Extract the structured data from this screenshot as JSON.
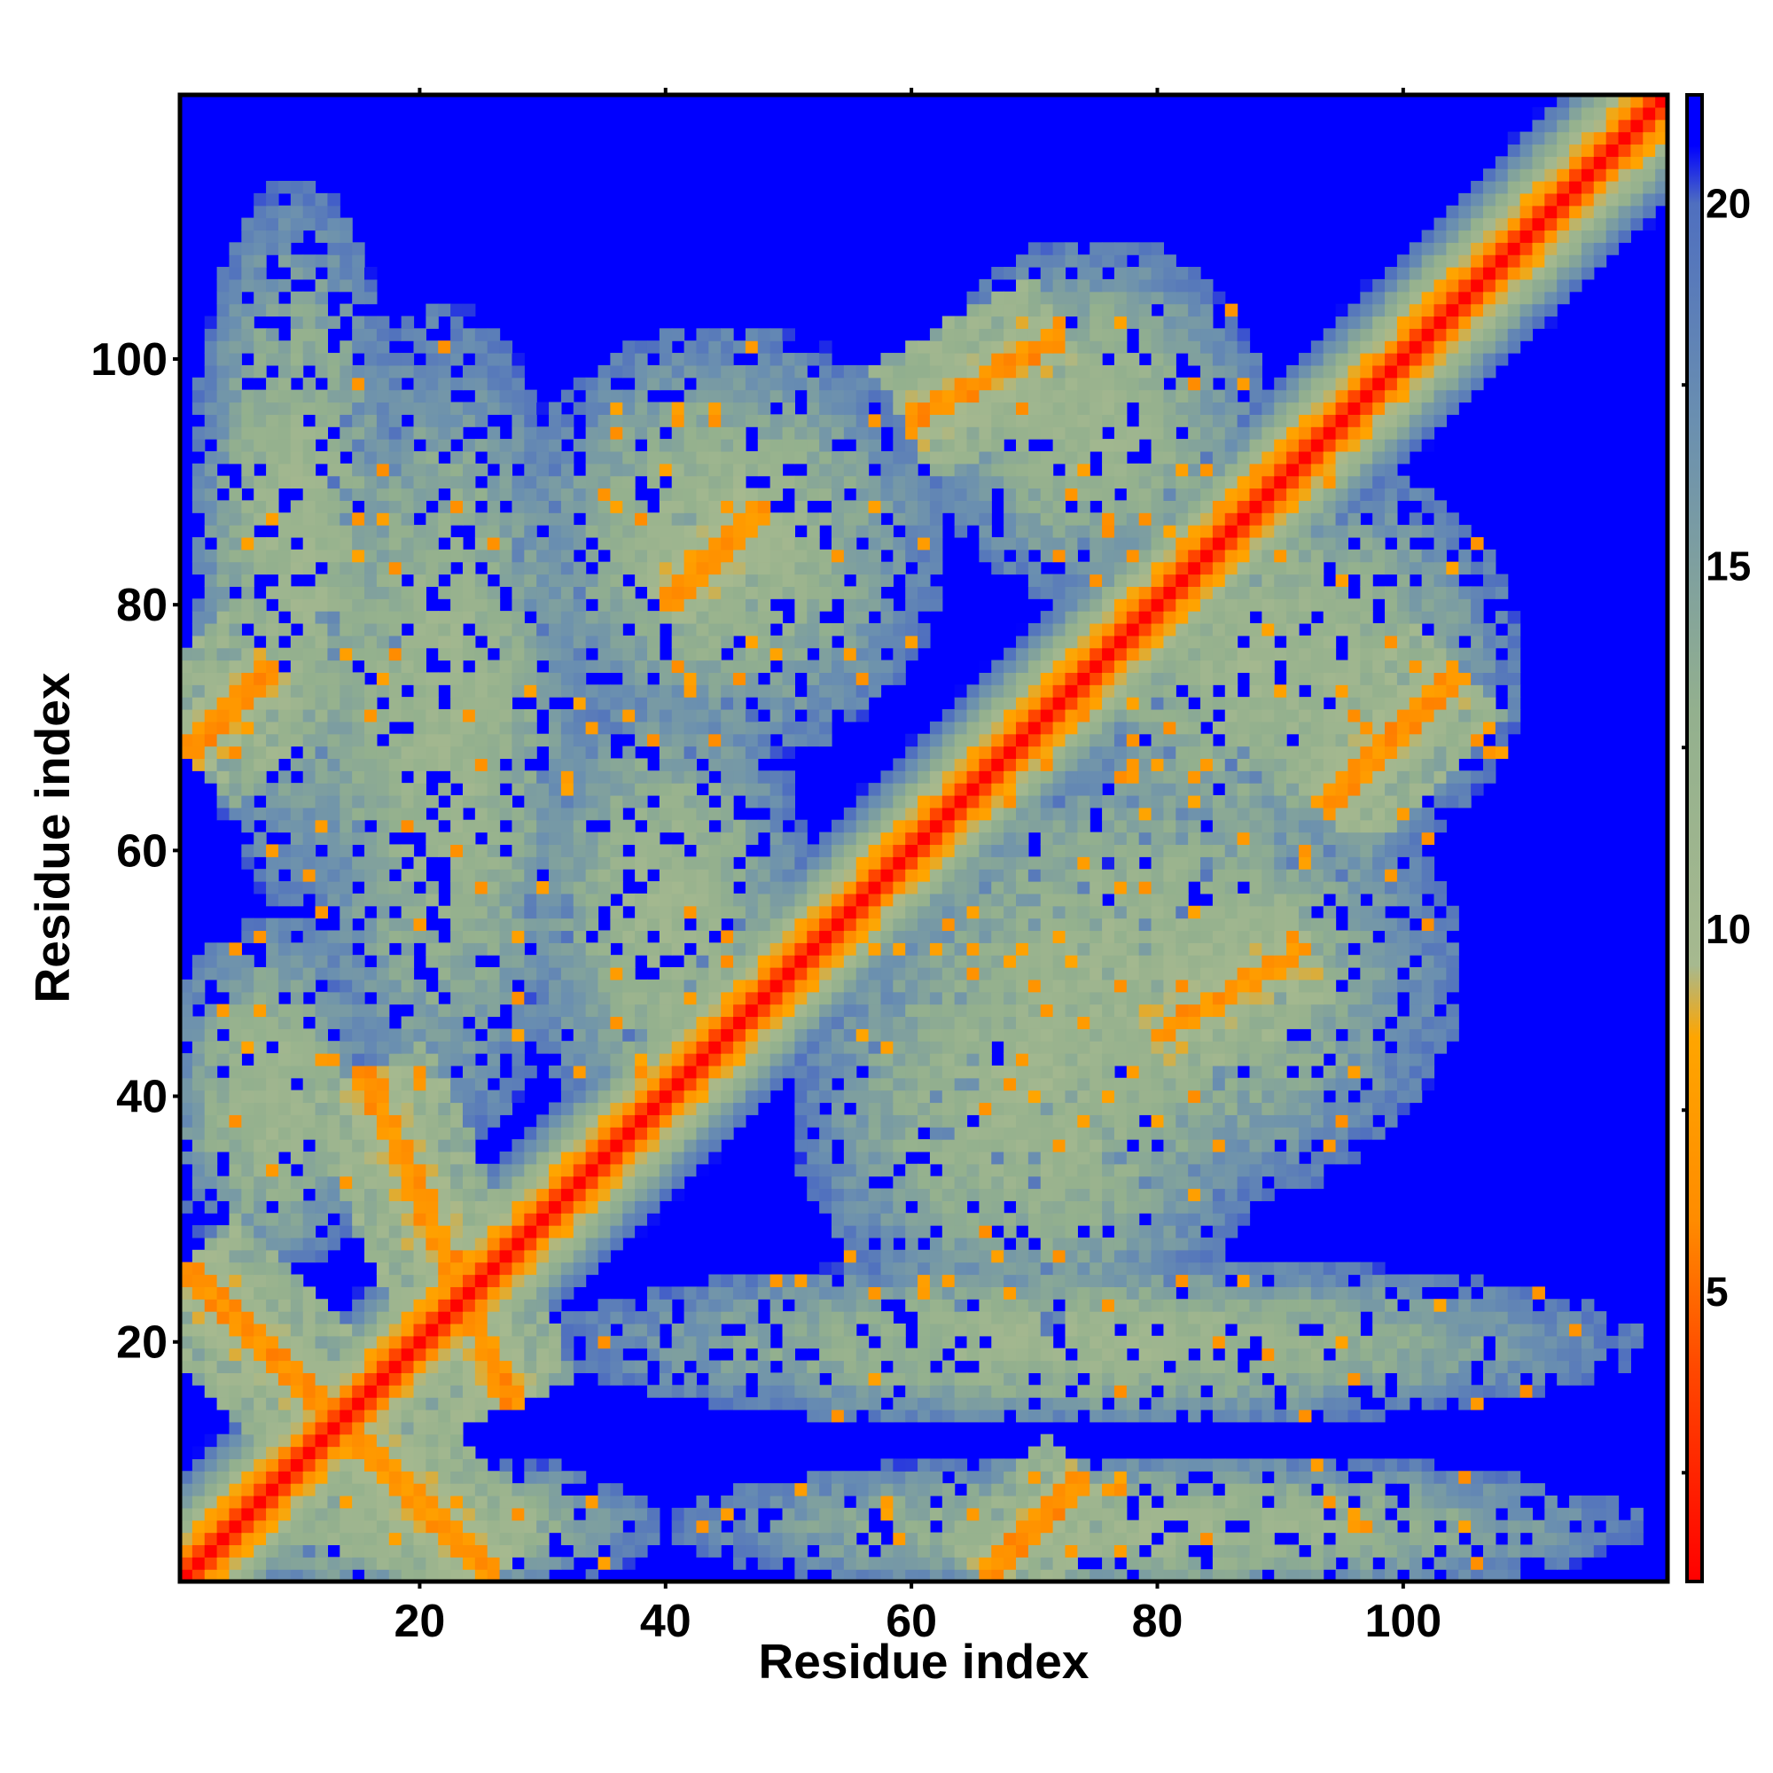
{
  "chart_data": {
    "type": "heatmap",
    "title": "",
    "xlabel": "Residue index",
    "ylabel": "Residue index",
    "xlim": [
      1,
      121
    ],
    "ylim": [
      1,
      121
    ],
    "x_ticks": [
      20,
      40,
      60,
      80,
      100
    ],
    "y_ticks": [
      20,
      40,
      60,
      80,
      100
    ],
    "colorbar": {
      "ticks": [
        5,
        10,
        15,
        20
      ],
      "range": [
        1,
        21.5
      ],
      "low_color": "#ff0000",
      "mid_color": "#ff9900",
      "high_color": "#0000ff",
      "stops": [
        {
          "value": 1.0,
          "color": "#ff0000"
        },
        {
          "value": 4.0,
          "color": "#ff4a00"
        },
        {
          "value": 6.0,
          "color": "#ff8c00"
        },
        {
          "value": 8.5,
          "color": "#ffa500"
        },
        {
          "value": 9.5,
          "color": "#a6b98f"
        },
        {
          "value": 13.0,
          "color": "#93b08e"
        },
        {
          "value": 17.0,
          "color": "#6a8fb0"
        },
        {
          "value": 20.0,
          "color": "#4f6fbf"
        },
        {
          "value": 20.8,
          "color": "#0000ff"
        },
        {
          "value": 21.5,
          "color": "#0000ff"
        }
      ]
    },
    "matrix_size": 121,
    "background_value": 21,
    "cap_value": 21,
    "diagonal_band": {
      "half_width": 1.5,
      "distance_at_offset_0": 3.8,
      "increment_per_residue": 3.8
    },
    "contact_bands": [
      {
        "name": "hairpin-1",
        "a": [
          2,
          25
        ],
        "b": [
          25,
          2
        ],
        "width": 1.6
      },
      {
        "name": "hairpin-2",
        "a": [
          27,
          16
        ],
        "b": [
          16,
          41
        ],
        "width": 1.6
      },
      {
        "name": "sheet-1-68",
        "a": [
          1,
          68
        ],
        "b": [
          8,
          75
        ],
        "width": 1.6
      },
      {
        "name": "sheet-45-85",
        "a": [
          40,
          80
        ],
        "b": [
          48,
          88
        ],
        "width": 1.4
      },
      {
        "name": "sheet-65-100",
        "a": [
          60,
          95
        ],
        "b": [
          72,
          102
        ],
        "width": 1.5
      },
      {
        "name": "sheet-86-45",
        "a": [
          80,
          45
        ],
        "b": [
          92,
          52
        ],
        "width": 1.4
      },
      {
        "name": "sheet-100-70",
        "a": [
          94,
          64
        ],
        "b": [
          104,
          74
        ],
        "width": 1.5
      },
      {
        "name": "sheet-70-5",
        "a": [
          66,
          1
        ],
        "b": [
          74,
          9
        ],
        "width": 1.3
      }
    ],
    "contact_regions": [
      {
        "cx": 10,
        "cy": 85,
        "rx": 9,
        "ry": 30
      },
      {
        "cx": 22,
        "cy": 70,
        "rx": 12,
        "ry": 35
      },
      {
        "cx": 8,
        "cy": 40,
        "rx": 9,
        "ry": 15
      },
      {
        "cx": 45,
        "cy": 85,
        "rx": 18,
        "ry": 18
      },
      {
        "cx": 75,
        "cy": 95,
        "rx": 14,
        "ry": 15
      },
      {
        "cx": 40,
        "cy": 55,
        "rx": 12,
        "ry": 20
      },
      {
        "cx": 80,
        "cy": 50,
        "rx": 25,
        "ry": 20
      },
      {
        "cx": 90,
        "cy": 75,
        "rx": 20,
        "ry": 18
      },
      {
        "cx": 70,
        "cy": 40,
        "rx": 20,
        "ry": 20
      },
      {
        "cx": 75,
        "cy": 20,
        "rx": 45,
        "ry": 7
      },
      {
        "cx": 80,
        "cy": 5,
        "rx": 40,
        "ry": 6
      },
      {
        "cx": 20,
        "cy": 5,
        "rx": 20,
        "ry": 6
      }
    ]
  }
}
